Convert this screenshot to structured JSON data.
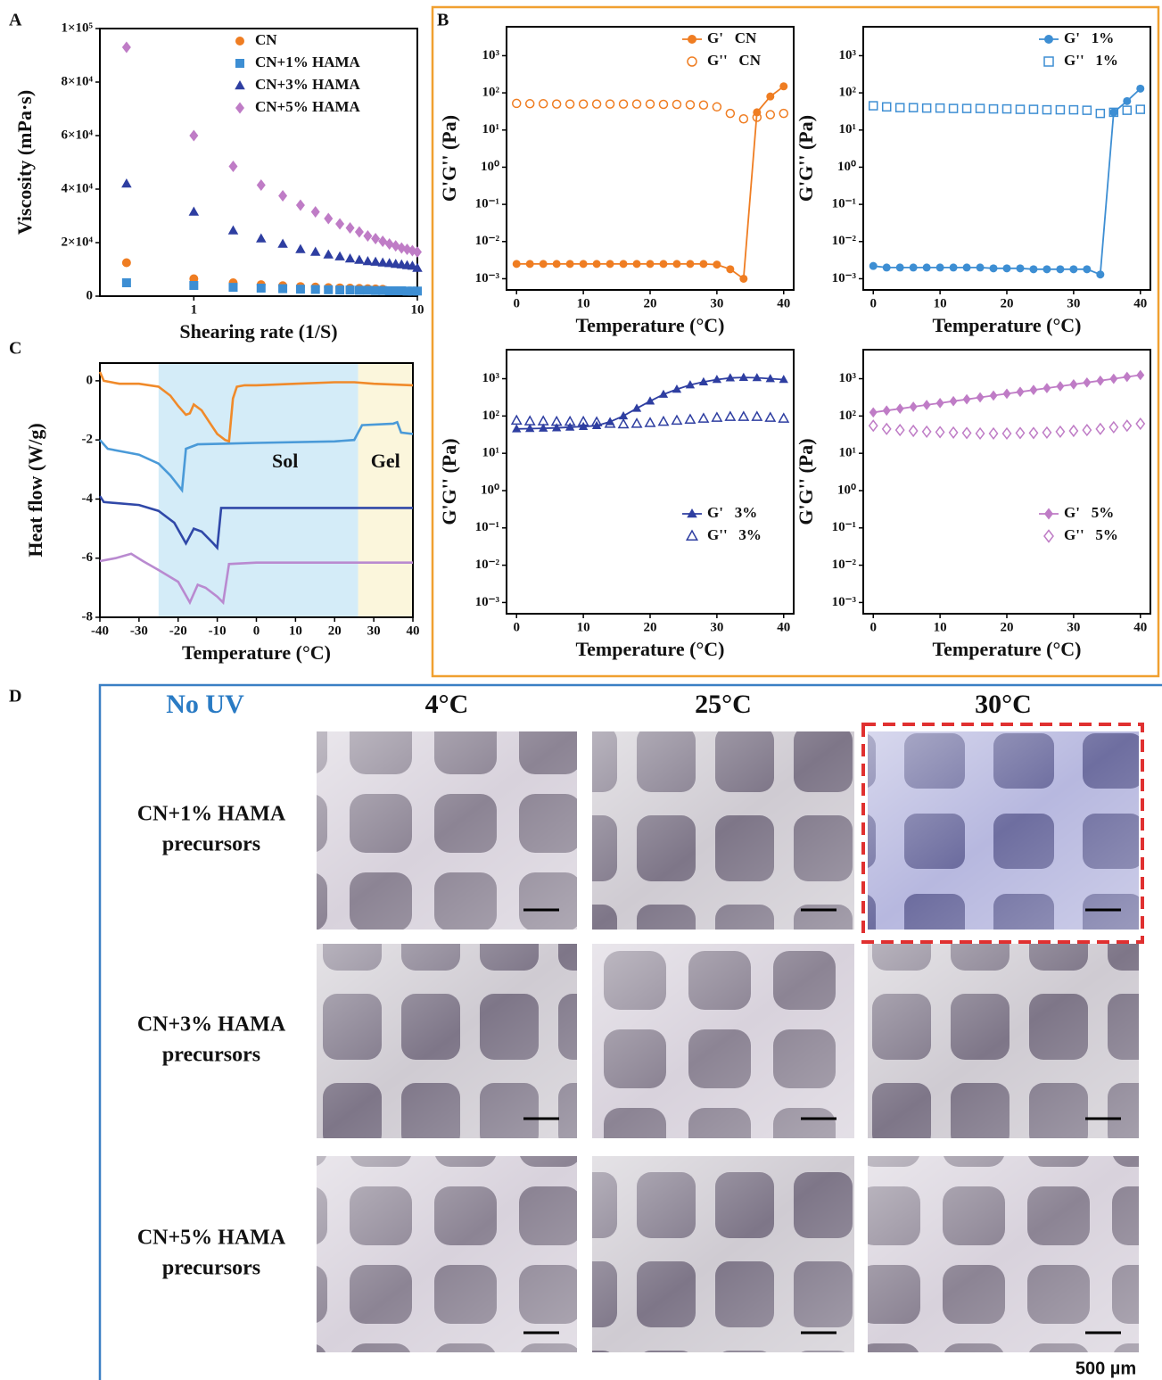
{
  "panel_labels": [
    "A",
    "B",
    "C",
    "D"
  ],
  "chart_data": [
    {
      "type": "scatter",
      "x_label": "Shearing rate  (1/S)",
      "y_label": "Viscosity (mPa·s)",
      "x_log": true,
      "xlim": [
        0.38,
        10
      ],
      "xticks": [
        1,
        10
      ],
      "ylim": [
        0,
        100000
      ],
      "yticks": [
        0,
        {
          "value": 20000,
          "label": "2×10⁴"
        },
        {
          "value": 40000,
          "label": "4×10⁴"
        },
        {
          "value": 60000,
          "label": "6×10⁴"
        },
        {
          "value": 80000,
          "label": "8×10⁴"
        },
        {
          "value": 100000,
          "label": "1×10⁵"
        }
      ],
      "legend": "top-right",
      "x": [
        0.5,
        1,
        1.5,
        2,
        2.5,
        3,
        3.5,
        4,
        4.5,
        5,
        5.5,
        6,
        6.5,
        7,
        7.5,
        8,
        8.5,
        9,
        9.5,
        10
      ],
      "series": [
        {
          "name": "CN",
          "color": "#ef7d22",
          "marker": "circle",
          "values": [
            12500,
            6500,
            5000,
            4300,
            3900,
            3600,
            3400,
            3200,
            3100,
            3000,
            2900,
            2800,
            2700,
            2600,
            null,
            null,
            null,
            null,
            null,
            null
          ]
        },
        {
          "name": "CN+1% HAMA",
          "color": "#3d8ed3",
          "marker": "square",
          "values": [
            5000,
            4000,
            3300,
            3000,
            2800,
            2600,
            2500,
            2400,
            2300,
            2300,
            2200,
            2200,
            2100,
            2100,
            2000,
            2000,
            2000,
            1900,
            1900,
            1900
          ]
        },
        {
          "name": "CN+3% HAMA",
          "color": "#2e3ea1",
          "marker": "triangle",
          "values": [
            42000,
            31500,
            24500,
            21500,
            19500,
            17500,
            16500,
            15500,
            14800,
            14000,
            13500,
            13000,
            12800,
            12500,
            12300,
            12000,
            11800,
            11500,
            11300,
            10500
          ]
        },
        {
          "name": "CN+5% HAMA",
          "color": "#bf7cc6",
          "marker": "diamond",
          "values": [
            93000,
            60000,
            48500,
            41500,
            37500,
            34000,
            31500,
            29000,
            27000,
            25500,
            24000,
            22500,
            21500,
            20500,
            19500,
            18800,
            18000,
            17500,
            17000,
            16500
          ]
        }
      ]
    },
    {
      "type": "line",
      "x_label": "Temperature (°C)",
      "y_label": "G'G'' (Pa)",
      "y_log": true,
      "xlim": [
        -1.5,
        41.5
      ],
      "xticks": [
        0,
        10,
        20,
        30,
        40
      ],
      "ylim": [
        0.0005,
        6000
      ],
      "yticks": [
        {
          "value": 0.001,
          "label": "10⁻³"
        },
        {
          "value": 0.01,
          "label": "10⁻²"
        },
        {
          "value": 0.1,
          "label": "10⁻¹"
        },
        {
          "value": 1,
          "label": "10⁰"
        },
        {
          "value": 10,
          "label": "10¹"
        },
        {
          "value": 100,
          "label": "10²"
        },
        {
          "value": 1000,
          "label": "10³"
        }
      ],
      "legend": "top-right",
      "x": [
        0,
        2,
        4,
        6,
        8,
        10,
        12,
        14,
        16,
        18,
        20,
        22,
        24,
        26,
        28,
        30,
        32,
        34,
        36,
        38,
        40
      ],
      "series": [
        {
          "name": "G'   CN",
          "color": "#ef7d22",
          "marker": "circle",
          "filled": true,
          "connect": true,
          "values": [
            0.0025,
            0.0025,
            0.0025,
            0.0025,
            0.0025,
            0.0025,
            0.0025,
            0.0025,
            0.0025,
            0.0025,
            0.0025,
            0.0025,
            0.0025,
            0.0025,
            0.0025,
            0.0024,
            0.0018,
            0.001,
            30,
            80,
            150
          ]
        },
        {
          "name": "G''   CN",
          "color": "#ef7d22",
          "marker": "circle",
          "filled": false,
          "connect": false,
          "values": [
            52,
            51,
            51,
            50,
            50,
            50,
            50,
            50,
            50,
            50,
            50,
            49,
            49,
            48,
            47,
            42,
            28,
            20,
            22,
            26,
            28
          ]
        }
      ]
    },
    {
      "type": "line",
      "x_label": "Temperature (°C)",
      "y_label": "G'G'' (Pa)",
      "y_log": true,
      "xlim": [
        -1.5,
        41.5
      ],
      "xticks": [
        0,
        10,
        20,
        30,
        40
      ],
      "ylim": [
        0.0005,
        6000
      ],
      "yticks": [
        {
          "value": 0.001,
          "label": "10⁻³"
        },
        {
          "value": 0.01,
          "label": "10⁻²"
        },
        {
          "value": 0.1,
          "label": "10⁻¹"
        },
        {
          "value": 1,
          "label": "10⁰"
        },
        {
          "value": 10,
          "label": "10¹"
        },
        {
          "value": 100,
          "label": "10²"
        },
        {
          "value": 1000,
          "label": "10³"
        }
      ],
      "legend": "top-right",
      "x": [
        0,
        2,
        4,
        6,
        8,
        10,
        12,
        14,
        16,
        18,
        20,
        22,
        24,
        26,
        28,
        30,
        32,
        34,
        36,
        38,
        40
      ],
      "series": [
        {
          "name": "G'   1%",
          "color": "#3d8ed3",
          "marker": "circle",
          "filled": true,
          "connect": true,
          "values": [
            0.0022,
            0.002,
            0.002,
            0.002,
            0.002,
            0.002,
            0.002,
            0.002,
            0.002,
            0.0019,
            0.0019,
            0.0019,
            0.0018,
            0.0018,
            0.0018,
            0.0018,
            0.0018,
            0.0013,
            30,
            60,
            130
          ]
        },
        {
          "name": "G''   1%",
          "color": "#3d8ed3",
          "marker": "square",
          "filled": false,
          "connect": false,
          "values": [
            45,
            42,
            40,
            40,
            39,
            39,
            38,
            38,
            38,
            37,
            37,
            36,
            36,
            35,
            35,
            35,
            34,
            28,
            30,
            34,
            36
          ]
        }
      ]
    },
    {
      "type": "line",
      "x_label": "Temperature (°C)",
      "y_label": "G'G'' (Pa)",
      "y_log": true,
      "xlim": [
        -1.5,
        41.5
      ],
      "xticks": [
        0,
        10,
        20,
        30,
        40
      ],
      "ylim": [
        0.0005,
        6000
      ],
      "yticks": [
        {
          "value": 0.001,
          "label": "10⁻³"
        },
        {
          "value": 0.01,
          "label": "10⁻²"
        },
        {
          "value": 0.1,
          "label": "10⁻¹"
        },
        {
          "value": 1,
          "label": "10⁰"
        },
        {
          "value": 10,
          "label": "10¹"
        },
        {
          "value": 100,
          "label": "10²"
        },
        {
          "value": 1000,
          "label": "10³"
        }
      ],
      "legend": "bottom-right",
      "x": [
        0,
        2,
        4,
        6,
        8,
        10,
        12,
        14,
        16,
        18,
        20,
        22,
        24,
        26,
        28,
        30,
        32,
        34,
        36,
        38,
        40
      ],
      "series": [
        {
          "name": "G'   3%",
          "color": "#2e3ea1",
          "marker": "triangle",
          "filled": true,
          "connect": true,
          "values": [
            45,
            46,
            47,
            48,
            50,
            52,
            55,
            70,
            100,
            160,
            250,
            380,
            520,
            680,
            820,
            950,
            1050,
            1080,
            1060,
            1000,
            950
          ]
        },
        {
          "name": "G''   3%",
          "color": "#2e3ea1",
          "marker": "triangle",
          "filled": false,
          "connect": false,
          "values": [
            75,
            72,
            72,
            70,
            70,
            70,
            68,
            62,
            60,
            62,
            65,
            70,
            75,
            80,
            85,
            90,
            95,
            95,
            95,
            90,
            85
          ]
        }
      ]
    },
    {
      "type": "line",
      "x_label": "Temperature (°C)",
      "y_label": "G'G'' (Pa)",
      "y_log": true,
      "xlim": [
        -1.5,
        41.5
      ],
      "xticks": [
        0,
        10,
        20,
        30,
        40
      ],
      "ylim": [
        0.0005,
        6000
      ],
      "yticks": [
        {
          "value": 0.001,
          "label": "10⁻³"
        },
        {
          "value": 0.01,
          "label": "10⁻²"
        },
        {
          "value": 0.1,
          "label": "10⁻¹"
        },
        {
          "value": 1,
          "label": "10⁰"
        },
        {
          "value": 10,
          "label": "10¹"
        },
        {
          "value": 100,
          "label": "10²"
        },
        {
          "value": 1000,
          "label": "10³"
        }
      ],
      "legend": "bottom-right",
      "x": [
        0,
        2,
        4,
        6,
        8,
        10,
        12,
        14,
        16,
        18,
        20,
        22,
        24,
        26,
        28,
        30,
        32,
        34,
        36,
        38,
        40
      ],
      "series": [
        {
          "name": "G'   5%",
          "color": "#bf7cc6",
          "marker": "diamond",
          "filled": true,
          "connect": true,
          "values": [
            125,
            140,
            157,
            177,
            198,
            222,
            250,
            280,
            315,
            353,
            396,
            444,
            499,
            560,
            628,
            705,
            791,
            887,
            995,
            1117,
            1253
          ]
        },
        {
          "name": "G''   5%",
          "color": "#bf7cc6",
          "marker": "diamond",
          "filled": false,
          "connect": false,
          "values": [
            55,
            45,
            42,
            40,
            38,
            37,
            36,
            35,
            34,
            34,
            34,
            35,
            35,
            36,
            38,
            40,
            42,
            45,
            50,
            55,
            62
          ]
        }
      ]
    },
    {
      "type": "line",
      "x_label": "Temperature (°C)",
      "y_label": "Heat flow (W/g)",
      "xlim": [
        -40,
        40
      ],
      "xticks": [
        -40,
        -30,
        -20,
        -10,
        0,
        10,
        20,
        30,
        40
      ],
      "ylim": [
        -8,
        0.6
      ],
      "yticks": [
        -8,
        -6,
        -4,
        -2,
        0
      ],
      "regions": [
        {
          "label": "Sol",
          "range": [
            -25,
            26
          ],
          "color": "#d4ecf8"
        },
        {
          "label": "Gel",
          "range": [
            26,
            40
          ],
          "color": "#fbf6dc"
        }
      ],
      "series": [
        {
          "color": "#f08a2a",
          "x": [
            -40,
            -39,
            -35,
            -30,
            -25,
            -22,
            -20,
            -18,
            -17,
            -16,
            -14,
            -12,
            -10,
            -8,
            -7,
            -6,
            -5,
            -3,
            0,
            10,
            20,
            25,
            30,
            40
          ],
          "values": [
            0.3,
            0,
            -0.1,
            -0.1,
            -0.2,
            -0.5,
            -0.85,
            -1.15,
            -1.1,
            -0.8,
            -1.0,
            -1.4,
            -1.8,
            -2.0,
            -2.05,
            -0.6,
            -0.2,
            -0.15,
            -0.15,
            -0.1,
            -0.05,
            -0.05,
            -0.1,
            -0.15
          ]
        },
        {
          "color": "#4a9ad8",
          "x": [
            -40,
            -38,
            -30,
            -25,
            -22,
            -19,
            -18,
            -15,
            0,
            20,
            25,
            27,
            35,
            36,
            37,
            40
          ],
          "values": [
            -2.0,
            -2.3,
            -2.5,
            -2.8,
            -3.2,
            -3.7,
            -2.3,
            -2.15,
            -2.1,
            -2.05,
            -2.0,
            -1.5,
            -1.45,
            -1.4,
            -1.75,
            -1.8
          ]
        },
        {
          "color": "#3048a8",
          "x": [
            -40,
            -39,
            -30,
            -25,
            -21,
            -18,
            -16,
            -14,
            -11,
            -10,
            -9,
            0,
            40
          ],
          "values": [
            -3.9,
            -4.1,
            -4.2,
            -4.4,
            -4.8,
            -5.5,
            -5.0,
            -5.1,
            -5.5,
            -5.65,
            -4.3,
            -4.3,
            -4.3
          ]
        },
        {
          "color": "#b98ad0",
          "x": [
            -40,
            -36,
            -32,
            -29,
            -25,
            -20,
            -17,
            -15,
            -13,
            -10,
            -8.5,
            -7,
            0,
            40
          ],
          "values": [
            -6.1,
            -6.0,
            -5.85,
            -6.1,
            -6.4,
            -6.8,
            -7.5,
            -6.9,
            -7.0,
            -7.3,
            -7.5,
            -6.2,
            -6.15,
            -6.15
          ]
        }
      ]
    }
  ],
  "photo_grid": {
    "title": "No UV",
    "columns": [
      "4°C",
      "25°C",
      "30°C"
    ],
    "rows": [
      [
        "CN+1% HAMA",
        "precursors"
      ],
      [
        "CN+3% HAMA",
        "precursors"
      ],
      [
        "CN+5% HAMA",
        "precursors"
      ]
    ],
    "scale_bar": "500 µm"
  }
}
